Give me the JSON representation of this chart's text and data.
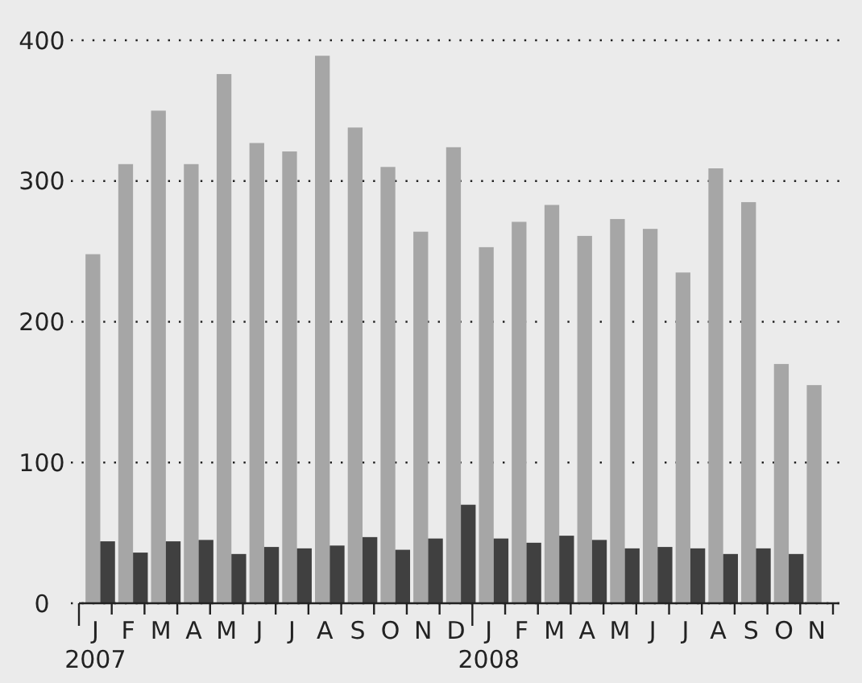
{
  "chart_data": {
    "type": "bar",
    "categories": [
      "J\n2007",
      "F",
      "M",
      "A",
      "M",
      "J",
      "J",
      "A",
      "S",
      "O",
      "N",
      "D",
      "J\n2008",
      "F",
      "M",
      "A",
      "M",
      "J",
      "J",
      "A",
      "S",
      "O",
      "N"
    ],
    "series": [
      {
        "color": "#a6a6a6",
        "values": [
          248,
          312,
          350,
          312,
          376,
          327,
          321,
          389,
          338,
          310,
          264,
          324,
          253,
          271,
          283,
          261,
          273,
          266,
          235,
          309,
          285,
          170,
          155
        ]
      },
      {
        "color": "#404040",
        "values": [
          44,
          36,
          44,
          45,
          35,
          40,
          39,
          41,
          47,
          38,
          46,
          70,
          46,
          43,
          48,
          45,
          39,
          40,
          39,
          35,
          39,
          35,
          null
        ]
      }
    ],
    "ylim": [
      0,
      400
    ],
    "yticks": [
      0,
      100,
      200,
      300,
      400
    ],
    "grid": "y"
  }
}
